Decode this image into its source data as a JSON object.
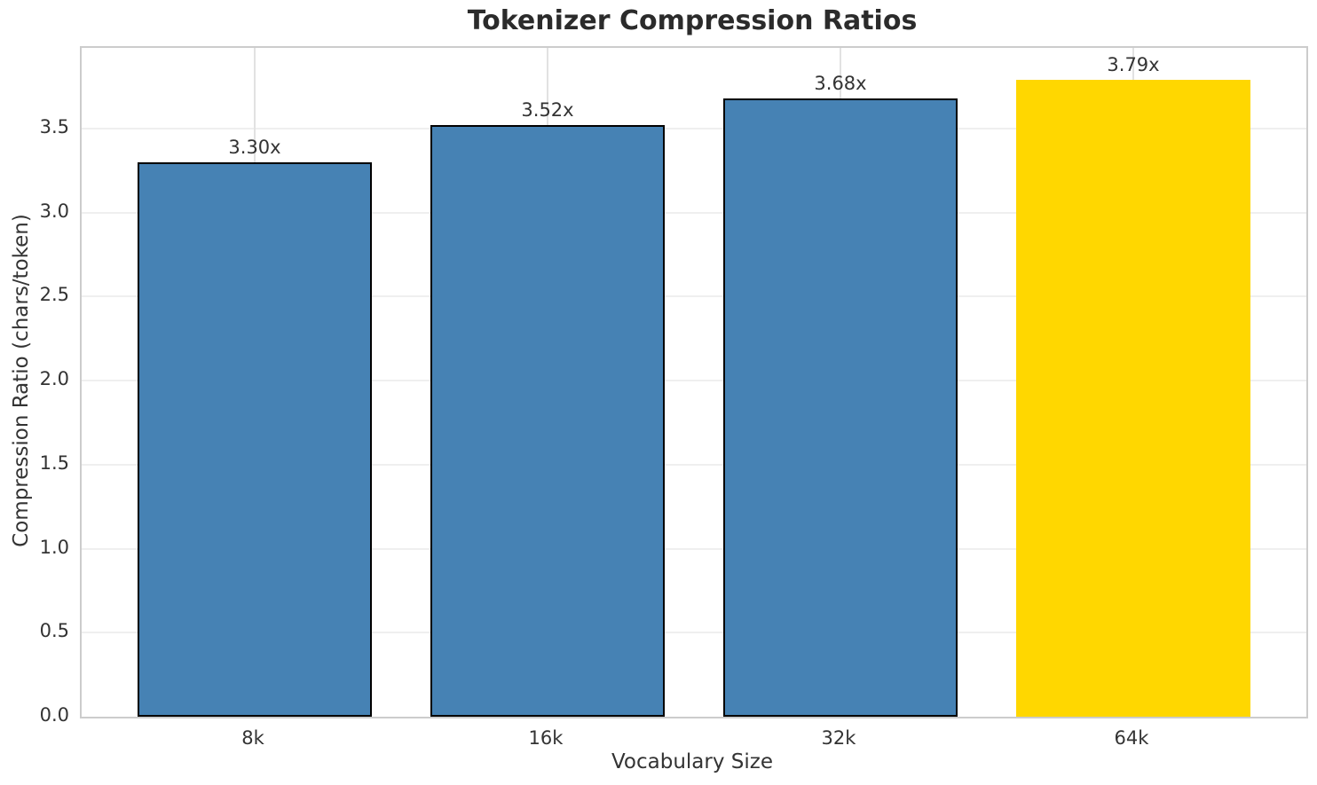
{
  "chart_data": {
    "type": "bar",
    "title": "Tokenizer Compression Ratios",
    "xlabel": "Vocabulary Size",
    "ylabel": "Compression Ratio (chars/token)",
    "categories": [
      "8k",
      "16k",
      "32k",
      "64k"
    ],
    "values": [
      3.3,
      3.52,
      3.68,
      3.79
    ],
    "bar_labels": [
      "3.30x",
      "3.52x",
      "3.68x",
      "3.79x"
    ],
    "bar_colors": [
      "#4682B4",
      "#4682B4",
      "#4682B4",
      "#FFD700"
    ],
    "bar_edge_colors": [
      "#000000",
      "#000000",
      "#000000",
      "none"
    ],
    "highlight_index": 3,
    "ylim": [
      0,
      3.98
    ],
    "yticks": [
      "0.0",
      "0.5",
      "1.0",
      "1.5",
      "2.0",
      "2.5",
      "3.0",
      "3.5"
    ],
    "grid": true,
    "legend_position": "none",
    "style": {
      "bar_color": "#4682B4",
      "highlight_color": "#FFD700",
      "edge_color": "#000000",
      "grid_color": "#efefef",
      "spine_color": "#cccccc",
      "text_color": "#333333",
      "title_color": "#2b2b2b",
      "background": "#ffffff",
      "bar_width_fraction": 0.8
    }
  }
}
